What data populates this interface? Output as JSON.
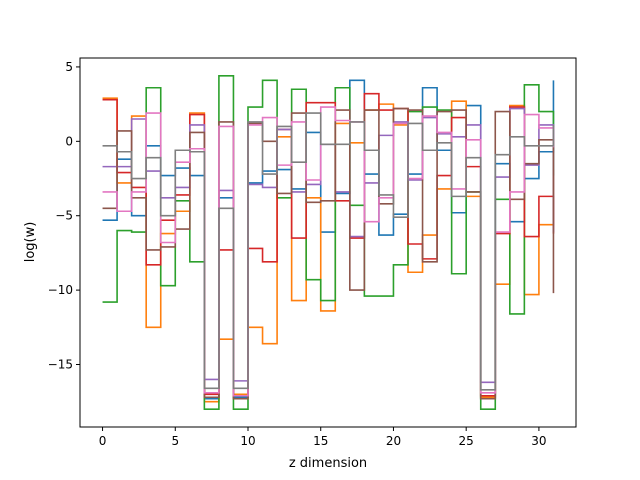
{
  "chart_data": {
    "type": "line",
    "drawstyle": "steps-post",
    "title": "",
    "xlabel": "z dimension",
    "ylabel": "log(w)",
    "xlim": [
      -1.55,
      32.55
    ],
    "ylim": [
      -19.2,
      5.6
    ],
    "xticks": [
      0,
      5,
      10,
      15,
      20,
      25,
      30
    ],
    "yticks": [
      5,
      0,
      -5,
      -10,
      -15
    ],
    "ytick_labels": [
      "5",
      "0",
      "−5",
      "−10",
      "−15"
    ],
    "grid": false,
    "legend": "none",
    "x": [
      0,
      1,
      2,
      3,
      4,
      5,
      6,
      7,
      8,
      9,
      10,
      11,
      12,
      13,
      14,
      15,
      16,
      17,
      18,
      19,
      20,
      21,
      22,
      23,
      24,
      25,
      26,
      27,
      28,
      29,
      30,
      31
    ],
    "series": [
      {
        "color": "#1f77b4",
        "values": [
          -5.3,
          -1.2,
          -5.0,
          -0.3,
          -2.3,
          -1.8,
          -2.3,
          -17.3,
          -3.8,
          -17.2,
          -2.8,
          -2.0,
          -1.9,
          -3.2,
          0.6,
          -6.1,
          -3.5,
          4.1,
          -2.2,
          -6.3,
          -4.9,
          -2.2,
          3.6,
          -0.6,
          -4.8,
          2.4,
          -17.3,
          -1.5,
          -5.4,
          -2.5,
          -0.7,
          4.1
        ]
      },
      {
        "color": "#ff7f0e",
        "values": [
          2.9,
          -2.8,
          1.7,
          -12.5,
          -6.2,
          -4.7,
          1.9,
          -17.5,
          -13.3,
          -17.0,
          -12.5,
          -13.6,
          0.3,
          -10.7,
          -3.8,
          -11.4,
          1.2,
          -0.1,
          2.1,
          2.5,
          1.1,
          -8.8,
          -6.3,
          -3.2,
          2.7,
          -3.7,
          -17.2,
          -9.6,
          2.4,
          -10.3,
          -5.6,
          -1.9
        ]
      },
      {
        "color": "#2ca02c",
        "values": [
          -10.8,
          -6.0,
          -6.1,
          3.6,
          -9.7,
          -4.0,
          -8.1,
          -18.0,
          4.4,
          -18.0,
          2.3,
          4.1,
          -3.8,
          3.5,
          -9.3,
          -10.7,
          3.6,
          -4.3,
          -10.4,
          -10.4,
          -8.3,
          2.0,
          2.3,
          2.1,
          -8.9,
          -3.4,
          -18.0,
          -3.9,
          -11.6,
          3.8,
          2.0,
          -2.3
        ]
      },
      {
        "color": "#d62728",
        "values": [
          2.8,
          -2.1,
          -3.1,
          -8.3,
          -5.3,
          -3.6,
          1.8,
          -17.0,
          -7.3,
          -17.1,
          -7.2,
          -8.1,
          0.8,
          -6.5,
          2.6,
          2.6,
          -4.0,
          -6.5,
          3.2,
          2.1,
          2.2,
          -6.9,
          -7.9,
          -2.3,
          1.6,
          -1.7,
          -17.1,
          -6.2,
          2.3,
          -6.4,
          -3.7,
          -6.2
        ]
      },
      {
        "color": "#9467bd",
        "values": [
          -1.7,
          -1.7,
          1.5,
          -2.0,
          -3.8,
          -3.1,
          1.1,
          -16.0,
          -3.3,
          -16.1,
          -2.9,
          -3.1,
          0.8,
          -3.4,
          -2.9,
          -0.2,
          -3.4,
          -6.4,
          -2.8,
          0.4,
          1.3,
          -2.6,
          1.6,
          0.5,
          0.3,
          1.1,
          -16.2,
          -2.4,
          2.2,
          -1.6,
          1.1,
          -6.1
        ]
      },
      {
        "color": "#8c564b",
        "values": [
          -4.5,
          0.7,
          -3.8,
          -7.3,
          -7.1,
          -5.9,
          0.6,
          -17.2,
          1.3,
          -17.3,
          1.2,
          0.0,
          -3.5,
          1.9,
          -4.1,
          -4.0,
          2.1,
          -10.0,
          2.1,
          -4.2,
          2.2,
          2.1,
          -8.1,
          2.0,
          2.1,
          -3.4,
          -17.3,
          2.0,
          -3.9,
          -1.5,
          0.1,
          -10.2
        ]
      },
      {
        "color": "#e377c2",
        "values": [
          -3.4,
          -4.7,
          -3.4,
          1.9,
          -6.8,
          -1.4,
          -0.5,
          -16.9,
          1.0,
          -17.1,
          1.1,
          1.6,
          -1.6,
          1.3,
          -2.6,
          2.3,
          1.4,
          1.3,
          -5.4,
          -3.8,
          1.2,
          -2.5,
          1.7,
          0.6,
          -3.2,
          0.1,
          -16.9,
          -6.1,
          -3.4,
          1.8,
          0.9,
          -0.4
        ]
      },
      {
        "color": "#7f7f7f",
        "values": [
          -0.3,
          -0.7,
          -2.5,
          -1.1,
          -5.0,
          -0.6,
          -0.7,
          -16.6,
          -4.5,
          -16.6,
          1.3,
          -2.2,
          1.0,
          -1.4,
          1.9,
          -0.2,
          -0.2,
          1.3,
          -0.6,
          -3.6,
          -5.1,
          1.2,
          -0.6,
          -0.1,
          -3.7,
          -1.1,
          -16.7,
          -0.9,
          0.3,
          -0.3,
          -0.3,
          1.1
        ]
      }
    ]
  }
}
